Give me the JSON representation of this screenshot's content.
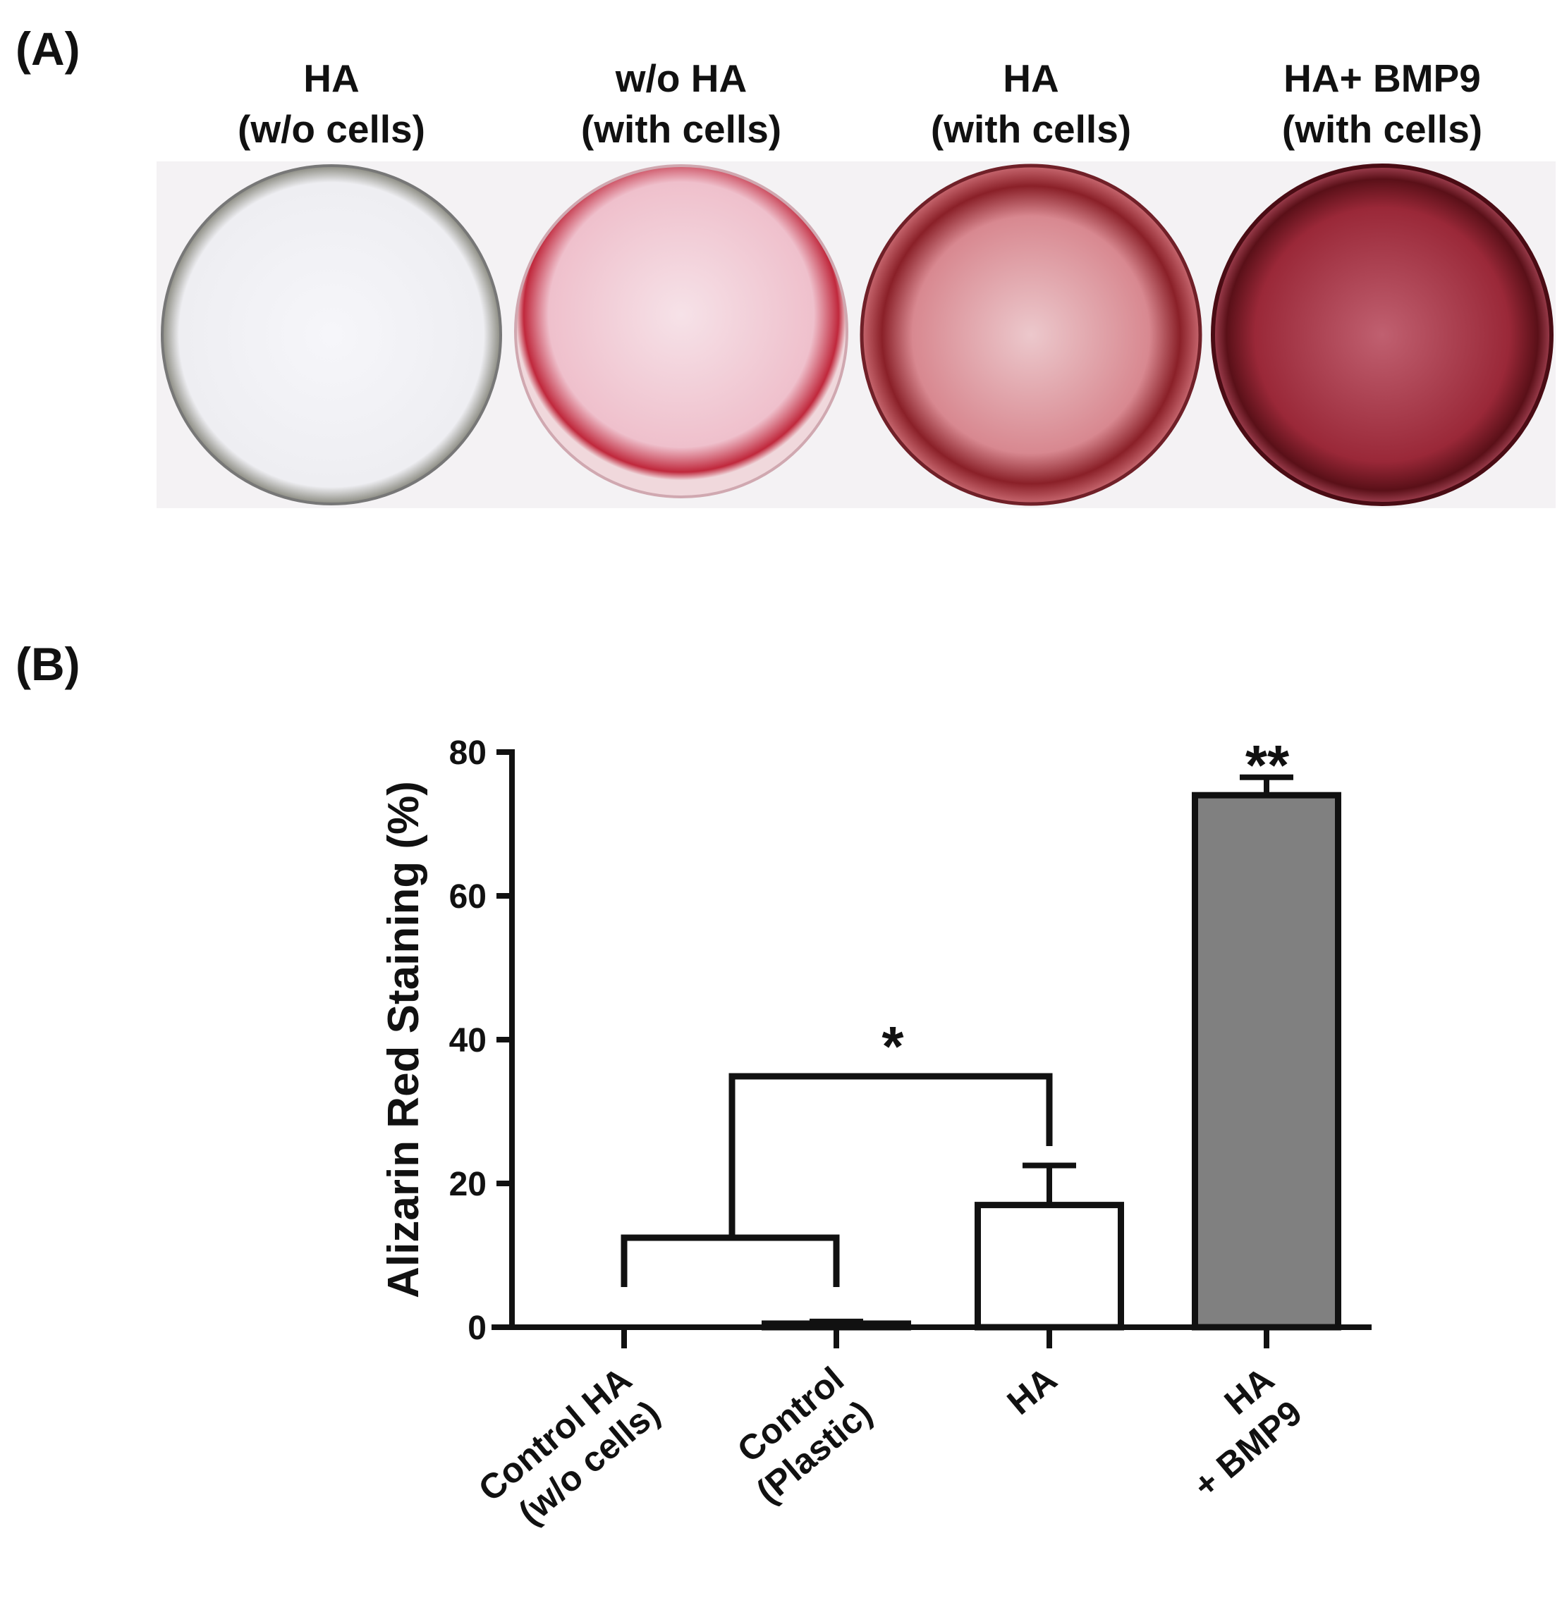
{
  "panel_a": {
    "label": "(A)",
    "wells": [
      [
        "HA",
        "(w/o cells)"
      ],
      [
        "w/o HA",
        "(with cells)"
      ],
      [
        "HA",
        "(with cells)"
      ],
      [
        "HA+ BMP9",
        "(with cells)"
      ]
    ]
  },
  "panel_b": {
    "label": "(B)"
  },
  "chart_data": {
    "type": "bar",
    "y_label": "Alizarin Red Staining (%)",
    "categories": [
      [
        "Control HA",
        "(w/o cells)"
      ],
      [
        "Control",
        "(Plastic)"
      ],
      [
        "HA"
      ],
      [
        "HA",
        "+ BMP9"
      ]
    ],
    "values": [
      0,
      0.5,
      17,
      74
    ],
    "errors": [
      0,
      0.3,
      5.5,
      2.5
    ],
    "colors": [
      "#ffffff",
      "#ffffff",
      "#ffffff",
      "#808080"
    ],
    "ylim": [
      0,
      80
    ],
    "yticks": [
      0,
      20,
      40,
      60,
      80
    ],
    "annotations": [
      "*",
      "**"
    ]
  }
}
